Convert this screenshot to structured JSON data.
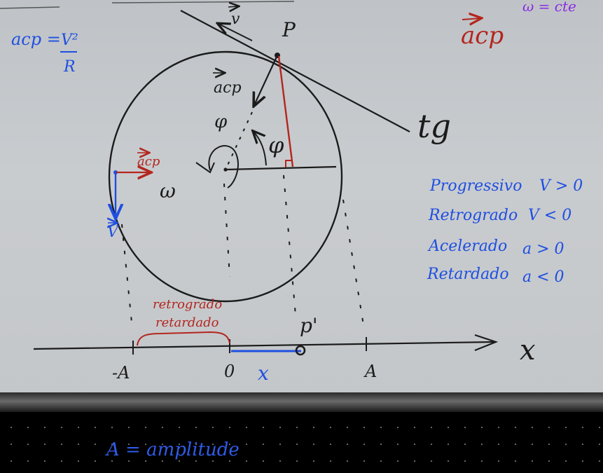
{
  "colors": {
    "chalk": "#1b1b1b",
    "red": "#b3261e",
    "blue": "#1e4fe0",
    "purple": "#8a2be2"
  },
  "formula": {
    "lhs": "acp =",
    "numerator": "V²",
    "denominator": "R"
  },
  "top_right": {
    "omega_note": "ω = cte",
    "acp_label": "acp"
  },
  "labels": {
    "point_p": "P",
    "velocity_top": "v",
    "acp_top": "acp",
    "phi_left": "φ",
    "phi_right": "φ",
    "omega": "ω",
    "tangent": "tg",
    "acp_left": "acp",
    "velocity_left": "V",
    "point_p_prime": "p'",
    "x_axis": "x",
    "minus_a": "-A",
    "origin": "0",
    "x_value": "x",
    "plus_a": "A",
    "region_line1": "retrogrado",
    "region_line2": "retardado"
  },
  "legend": [
    {
      "name": "Progressivo",
      "condition": "V > 0"
    },
    {
      "name": "Retrogrado",
      "condition": "V < 0"
    },
    {
      "name": "Acelerado",
      "condition": "a > 0"
    },
    {
      "name": "Retardado",
      "condition": "a < 0"
    }
  ],
  "bottom_note": "A = amplitude"
}
